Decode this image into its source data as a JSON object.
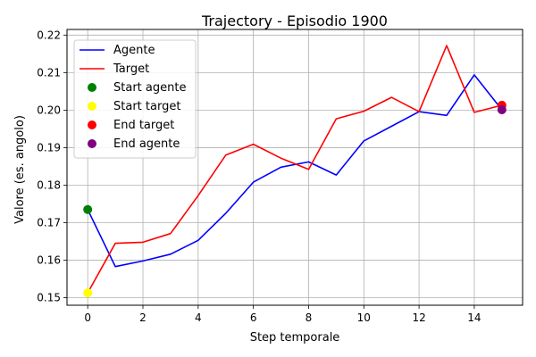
{
  "chart_data": {
    "type": "line",
    "title": "Trajectory - Episodio 1900",
    "xlabel": "Step temporale",
    "ylabel": "Valore (es. angolo)",
    "xlim": [
      -0.75,
      15.75
    ],
    "ylim": [
      0.148,
      0.2215
    ],
    "xticks": [
      0,
      2,
      4,
      6,
      8,
      10,
      12,
      14
    ],
    "yticks": [
      0.15,
      0.16,
      0.17,
      0.18,
      0.19,
      0.2,
      0.21,
      0.22
    ],
    "xtick_labels": [
      "0",
      "2",
      "4",
      "6",
      "8",
      "10",
      "12",
      "14"
    ],
    "ytick_labels": [
      "0.15",
      "0.16",
      "0.17",
      "0.18",
      "0.19",
      "0.20",
      "0.21",
      "0.22"
    ],
    "grid": true,
    "legend_position": "upper-left",
    "x": [
      0,
      1,
      2,
      3,
      4,
      5,
      6,
      7,
      8,
      9,
      10,
      11,
      12,
      13,
      14,
      15
    ],
    "series": [
      {
        "name": "Agente",
        "color": "#0000ff",
        "values": [
          0.1735,
          0.1583,
          0.1598,
          0.1616,
          0.1653,
          0.1725,
          0.1808,
          0.1848,
          0.1862,
          0.1827,
          0.1918,
          0.1957,
          0.1996,
          0.1986,
          0.2094,
          0.2001
        ]
      },
      {
        "name": "Target",
        "color": "#ff0000",
        "values": [
          0.1513,
          0.1645,
          0.1648,
          0.1671,
          0.1772,
          0.188,
          0.1909,
          0.1872,
          0.1842,
          0.1977,
          0.1997,
          0.2034,
          0.1996,
          0.2172,
          0.1994,
          0.2013
        ]
      }
    ],
    "markers": [
      {
        "name": "Start agente",
        "color": "#008000",
        "x": 0,
        "y": 0.1735
      },
      {
        "name": "Start target",
        "color": "#ffff00",
        "x": 0,
        "y": 0.1513
      },
      {
        "name": "End target",
        "color": "#ff0000",
        "x": 15,
        "y": 0.2013
      },
      {
        "name": "End agente",
        "color": "#800080",
        "x": 15,
        "y": 0.2001
      }
    ]
  }
}
